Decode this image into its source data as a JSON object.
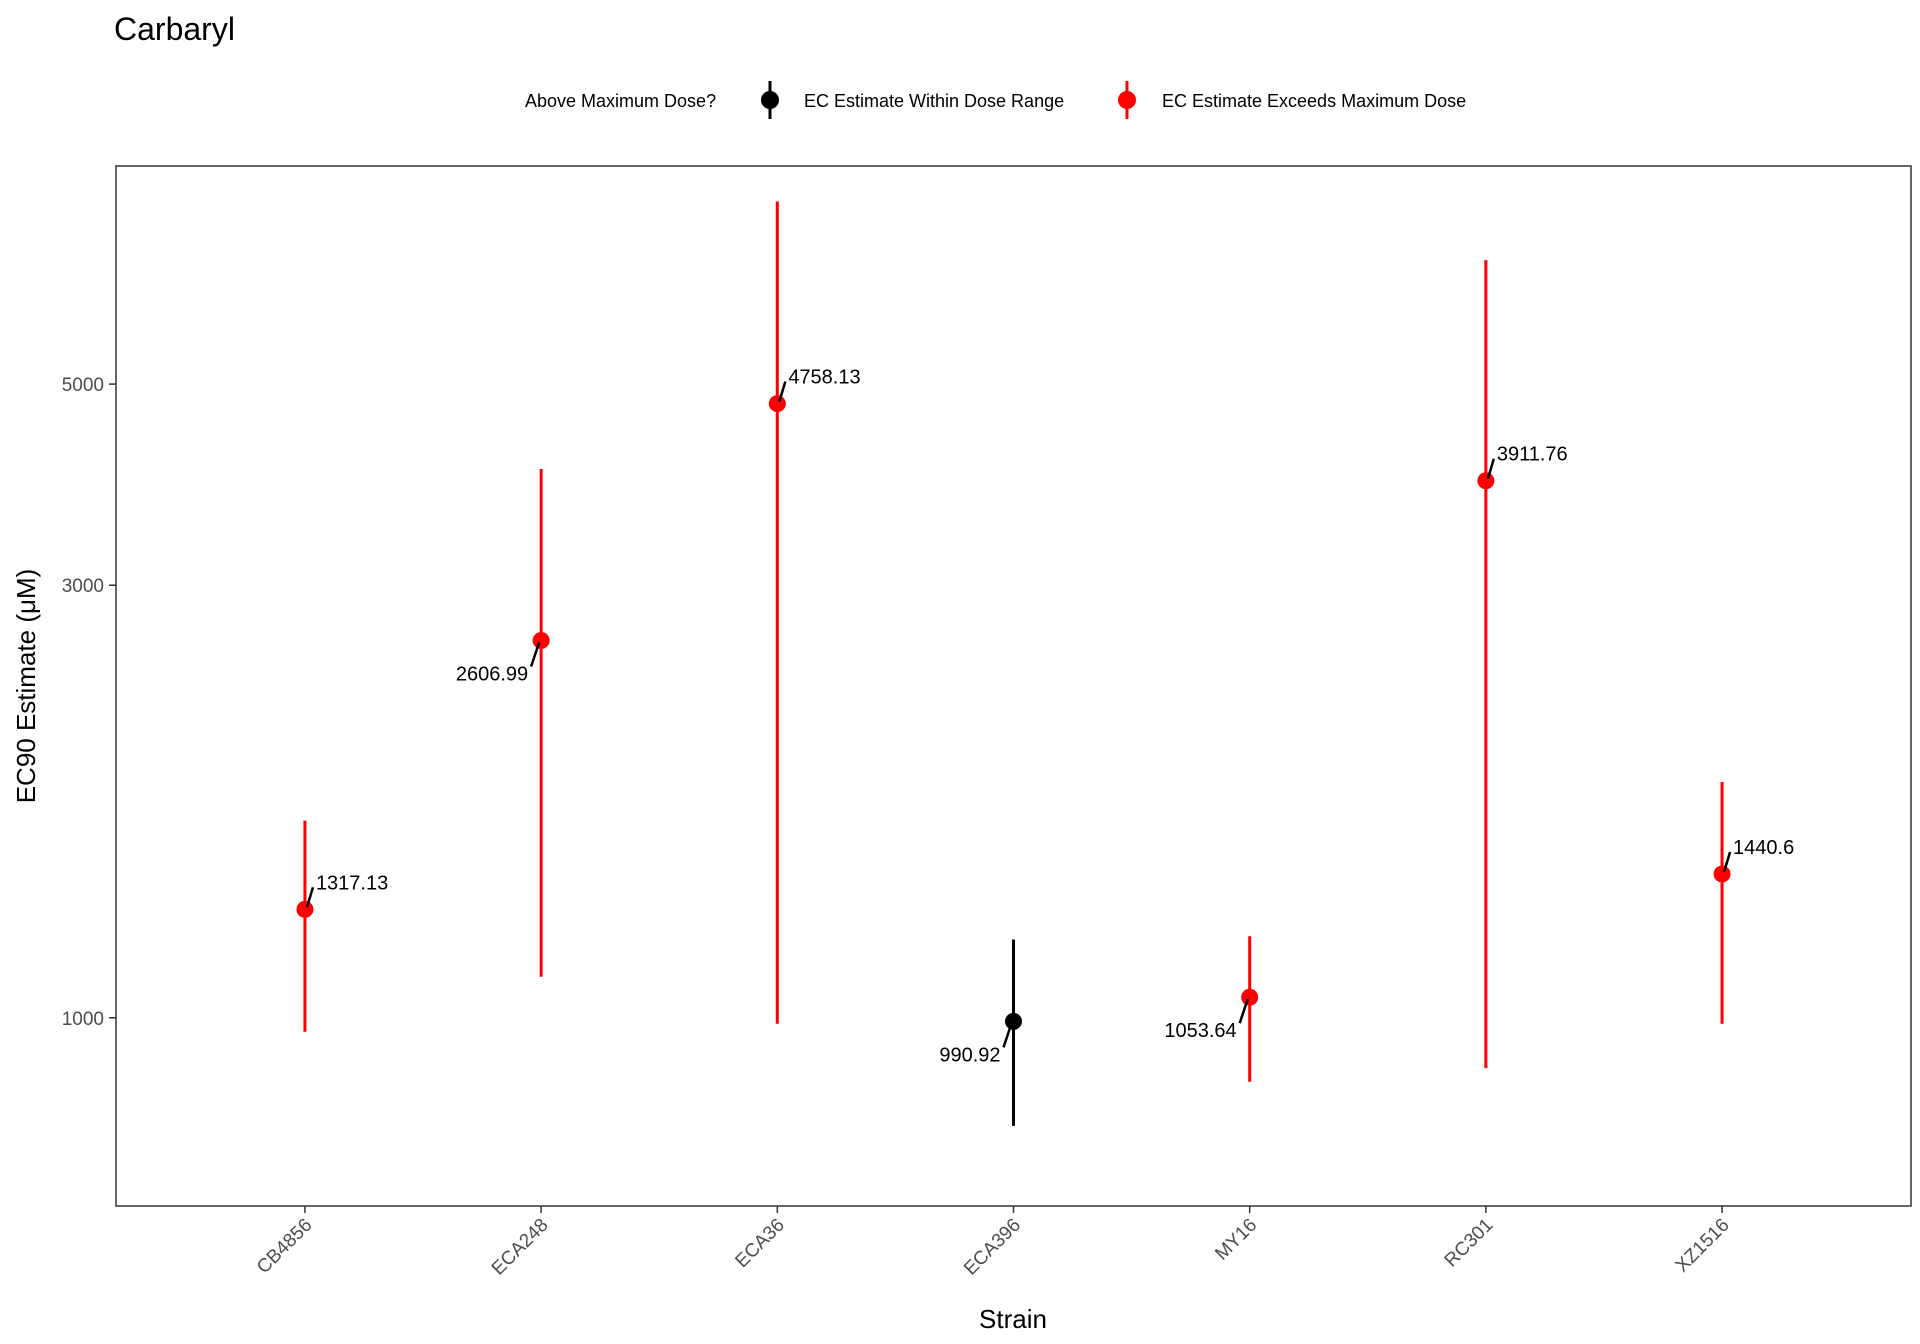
{
  "chart_data": {
    "type": "scatter",
    "title": "Carbaryl",
    "xlabel": "Strain",
    "ylabel": "EC90 Estimate (μM)",
    "y_scale": "log",
    "ylim": [
      620,
      8700
    ],
    "yticks": [
      1000,
      3000,
      5000
    ],
    "ytick_labels": [
      "1000",
      "3000",
      "5000"
    ],
    "grid": false,
    "legend": {
      "title": "Above Maximum Dose?",
      "position": "top",
      "entries": [
        {
          "label": "EC Estimate Within Dose Range",
          "color": "#000000"
        },
        {
          "label": "EC Estimate Exceeds Maximum Dose",
          "color": "#ff0000"
        }
      ]
    },
    "categories": [
      "CB4856",
      "ECA248",
      "ECA36",
      "ECA396",
      "MY16",
      "RC301",
      "XZ1516"
    ],
    "points": [
      {
        "strain": "CB4856",
        "estimate": 1317.13,
        "label": "1317.13",
        "lower": 965,
        "upper": 1650,
        "group": 1,
        "label_side": "right"
      },
      {
        "strain": "ECA248",
        "estimate": 2606.99,
        "label": "2606.99",
        "lower": 1110,
        "upper": 4030,
        "group": 1,
        "label_side": "left"
      },
      {
        "strain": "ECA36",
        "estimate": 4758.13,
        "label": "4758.13",
        "lower": 985,
        "upper": 7950,
        "group": 1,
        "label_side": "right"
      },
      {
        "strain": "ECA396",
        "estimate": 990.92,
        "label": "990.92",
        "lower": 760,
        "upper": 1220,
        "group": 0,
        "label_side": "left"
      },
      {
        "strain": "MY16",
        "estimate": 1053.64,
        "label": "1053.64",
        "lower": 850,
        "upper": 1230,
        "group": 1,
        "label_side": "left"
      },
      {
        "strain": "RC301",
        "estimate": 3911.76,
        "label": "3911.76",
        "lower": 880,
        "upper": 6850,
        "group": 1,
        "label_side": "right"
      },
      {
        "strain": "XZ1516",
        "estimate": 1440.6,
        "label": "1440.6",
        "lower": 985,
        "upper": 1820,
        "group": 1,
        "label_side": "right"
      }
    ]
  }
}
